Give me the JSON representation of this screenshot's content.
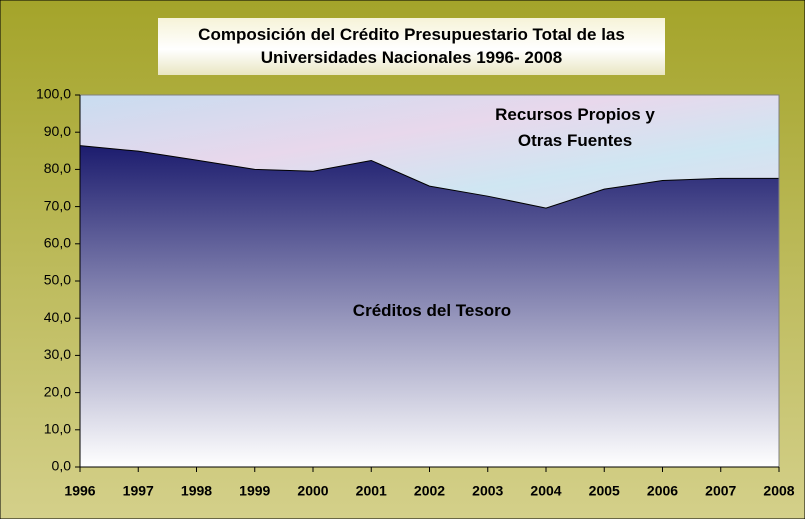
{
  "chart_data": {
    "type": "stacked_area",
    "title": "Composición del Crédito Presupuestario Total de las Universidades Nacionales 1996- 2008",
    "categories": [
      "1996",
      "1997",
      "1998",
      "1999",
      "2000",
      "2001",
      "2002",
      "2003",
      "2004",
      "2005",
      "2006",
      "2007",
      "2008"
    ],
    "series": [
      {
        "name": "Créditos del Tesoro",
        "color": "#1c1c6e",
        "values": [
          86.4,
          84.9,
          82.5,
          80.0,
          79.5,
          82.4,
          75.5,
          72.8,
          69.6,
          74.7,
          77.0,
          77.6,
          77.6
        ]
      },
      {
        "name": "Recursos Propios y Otras Fuentes",
        "color": "#cfe0f0",
        "values": [
          13.6,
          15.1,
          17.5,
          20.0,
          20.5,
          17.6,
          24.5,
          27.2,
          30.4,
          25.3,
          23.0,
          22.4,
          22.4
        ]
      }
    ],
    "ylim": [
      0,
      100
    ],
    "yticks": [
      {
        "value": 0,
        "label": "0,0"
      },
      {
        "value": 10,
        "label": "10,0"
      },
      {
        "value": 20,
        "label": "20,0"
      },
      {
        "value": 30,
        "label": "30,0"
      },
      {
        "value": 40,
        "label": "40,0"
      },
      {
        "value": 50,
        "label": "50,0"
      },
      {
        "value": 60,
        "label": "60,0"
      },
      {
        "value": 70,
        "label": "70,0"
      },
      {
        "value": 80,
        "label": "80,0"
      },
      {
        "value": 90,
        "label": "90,0"
      },
      {
        "value": 100,
        "label": "100,0"
      }
    ]
  }
}
